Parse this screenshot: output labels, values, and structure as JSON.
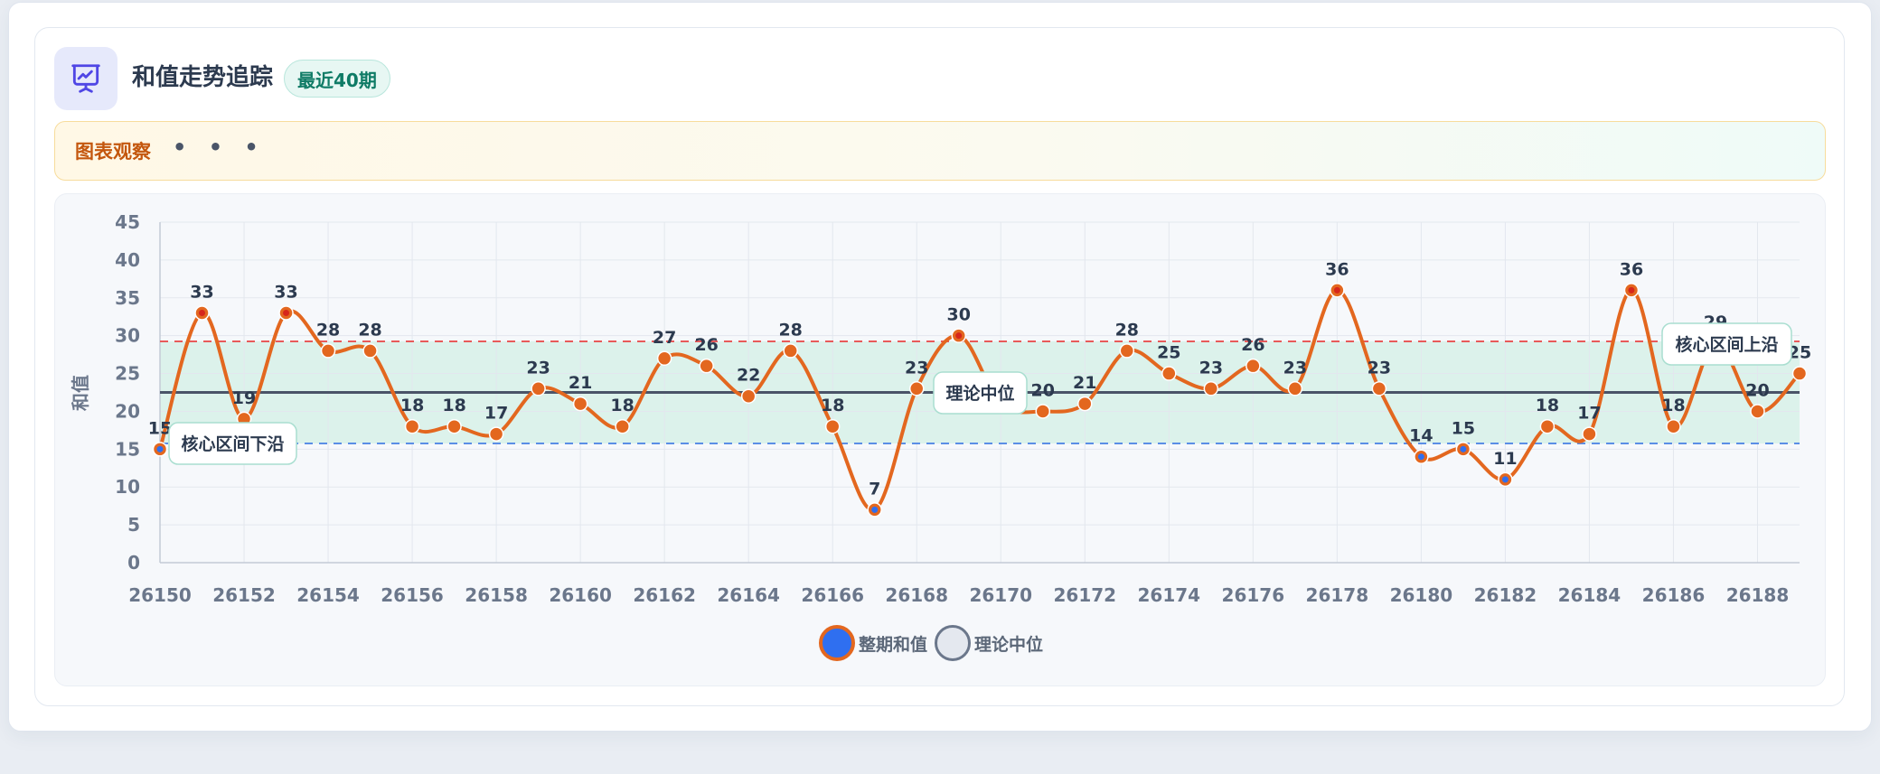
{
  "header": {
    "title": "和值走势追踪",
    "badge": "最近40期",
    "icon": "chart-presentation-icon"
  },
  "observation": {
    "label": "图表观察",
    "more": "• • •"
  },
  "colors": {
    "line": "#e3671f",
    "point_fill": "#e3671f",
    "low_point_fill": "#2f6ff0",
    "band": "#d3f0e6",
    "upper_dash": "#e85a5a",
    "lower_dash": "#5b8ee6",
    "median_line": "#4a5468",
    "accent": "#6366f1"
  },
  "chart_data": {
    "type": "line",
    "x": [
      26150,
      26151,
      26152,
      26153,
      26154,
      26155,
      26156,
      26157,
      26158,
      26159,
      26160,
      26161,
      26162,
      26163,
      26164,
      26165,
      26166,
      26167,
      26168,
      26169,
      26170,
      26171,
      26172,
      26173,
      26174,
      26175,
      26176,
      26177,
      26178,
      26179,
      26180,
      26181,
      26182,
      26183,
      26184,
      26185,
      26186,
      26187,
      26188,
      26189
    ],
    "x_ticks": [
      26150,
      26152,
      26154,
      26156,
      26158,
      26160,
      26162,
      26164,
      26166,
      26168,
      26170,
      26172,
      26174,
      26176,
      26178,
      26180,
      26182,
      26184,
      26186,
      26188
    ],
    "series": [
      {
        "name": "整期和值",
        "values": [
          15,
          33,
          19,
          33,
          28,
          28,
          18,
          18,
          17,
          23,
          21,
          18,
          27,
          26,
          22,
          28,
          18,
          7,
          23,
          30,
          21,
          20,
          21,
          28,
          25,
          23,
          26,
          23,
          36,
          23,
          14,
          15,
          11,
          18,
          17,
          36,
          18,
          29,
          20,
          25
        ]
      }
    ],
    "reference_lines": {
      "median": {
        "name": "理论中位",
        "value": 22.5
      },
      "band_lower": {
        "label": "核心区间下沿",
        "value": 15.75
      },
      "band_upper": {
        "label": "核心区间上沿",
        "value": 29.25
      }
    },
    "low_threshold": 15,
    "ylabel": "和值",
    "ylim": [
      0,
      45
    ],
    "y_ticks": [
      0,
      5,
      10,
      15,
      20,
      25,
      30,
      35,
      40,
      45
    ],
    "grid": true,
    "legend_position": "bottom-center"
  },
  "legend": {
    "items": [
      {
        "label": "整期和值"
      },
      {
        "label": "理论中位"
      }
    ]
  }
}
